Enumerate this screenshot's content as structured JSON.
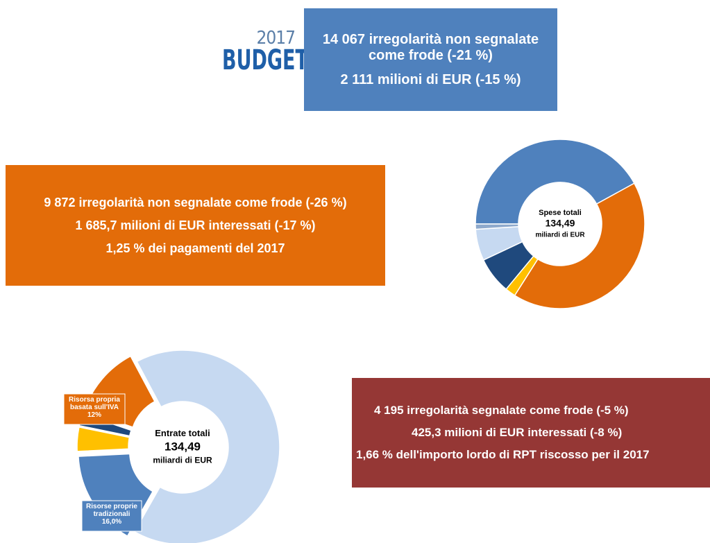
{
  "logo": {
    "year": "2017",
    "word": "BUDGET"
  },
  "boxes": [
    {
      "lines": [
        "14 067 irregolarità non segnalate come frode (-21 %)",
        "2 111 milioni di EUR (-15 %)"
      ]
    },
    {
      "lines": [
        "9 872 irregolarità non segnalate come frode (-26 %)",
        "1 685,7 milioni di EUR interessati (-17 %)",
        "1,25 % dei pagamenti del 2017"
      ]
    },
    {
      "lines": [
        "4 195 irregolarità segnalate come frode (-5 %)",
        "425,3 milioni di EUR interessati (-8 %)",
        "1,66 % dell'importo lordo di RPT riscosso per il 2017"
      ]
    }
  ],
  "chart_data": [
    {
      "type": "pie",
      "donut": true,
      "center_text": [
        "Spese totali",
        "134,49",
        "miliardi di EUR"
      ],
      "categories": [
        null,
        null,
        null,
        null,
        null,
        null
      ],
      "values": [
        42,
        42,
        2,
        7,
        6,
        1
      ],
      "colors": [
        "#4f81bd",
        "#e36c09",
        "#ffc000",
        "#1f497d",
        "#c6d9f1",
        "#8ea9cc"
      ]
    },
    {
      "type": "pie",
      "donut": true,
      "center_text": [
        "Entrate totali",
        "134,49",
        "miliardi di EUR"
      ],
      "categories": [
        null,
        "Risorse proprie tradizionali",
        null,
        null,
        "Risorsa propria basata sull'IVA"
      ],
      "values": [
        66,
        16,
        4,
        2,
        12
      ],
      "value_labels": [
        null,
        "16,0%",
        null,
        null,
        "12%"
      ],
      "colors": [
        "#c6d9f1",
        "#4f81bd",
        "#ffc000",
        "#1f497d",
        "#e36c09"
      ]
    }
  ]
}
